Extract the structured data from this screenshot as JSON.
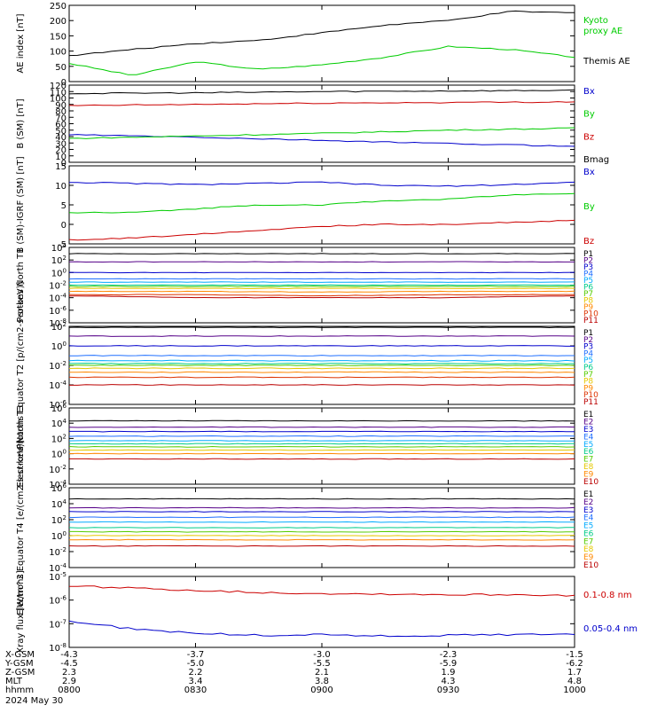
{
  "footer": {
    "rows": [
      {
        "label": "X-GSM",
        "values": [
          "-4.3",
          "-3.7",
          "-3.0",
          "-2.3",
          "-1.5"
        ]
      },
      {
        "label": "Y-GSM",
        "values": [
          "-4.5",
          "-5.0",
          "-5.5",
          "-5.9",
          "-6.2"
        ]
      },
      {
        "label": "Z-GSM",
        "values": [
          "2.3",
          "2.2",
          "2.1",
          "1.9",
          "1.7"
        ]
      },
      {
        "label": "MLT",
        "values": [
          "2.9",
          "3.4",
          "3.8",
          "4.3",
          "4.8"
        ]
      },
      {
        "label": "hhmm",
        "values": [
          "0800",
          "0830",
          "0900",
          "0930",
          "1000"
        ]
      }
    ],
    "date": "2024 May 30"
  },
  "chart_data": [
    {
      "type": "line",
      "ylabel": "AE index [nT]",
      "ylim": [
        0,
        250
      ],
      "yscale": "linear",
      "yticks": [
        "0",
        "50",
        "100",
        "150",
        "200",
        "250"
      ],
      "x": [
        "0800",
        "0815",
        "0830",
        "0845",
        "0900",
        "0915",
        "0930",
        "0945",
        "1000"
      ],
      "series": [
        {
          "name": "Kyoto proxy AE",
          "color": "#00cc00",
          "values": [
            60,
            20,
            65,
            40,
            55,
            80,
            115,
            105,
            80
          ]
        },
        {
          "name": "Themis AE",
          "color": "#000000",
          "values": [
            85,
            105,
            125,
            135,
            160,
            185,
            200,
            230,
            225
          ]
        }
      ]
    },
    {
      "type": "line",
      "ylabel": "B (SM) [nT]",
      "ylim": [
        0,
        120
      ],
      "yscale": "linear",
      "yticks": [
        "0",
        "10",
        "20",
        "30",
        "40",
        "50",
        "60",
        "70",
        "80",
        "90",
        "100",
        "110",
        "120"
      ],
      "x": [
        "0800",
        "0830",
        "0900",
        "0930",
        "1000"
      ],
      "series": [
        {
          "name": "Bx",
          "color": "#0000cc",
          "values": [
            43,
            39,
            34,
            29,
            25
          ]
        },
        {
          "name": "By",
          "color": "#00cc00",
          "values": [
            37,
            41,
            45,
            50,
            53
          ]
        },
        {
          "name": "Bz",
          "color": "#cc0000",
          "values": [
            88,
            90,
            92,
            93,
            94
          ]
        },
        {
          "name": "Bmag",
          "color": "#000000",
          "values": [
            107,
            108,
            110,
            111,
            112
          ]
        }
      ]
    },
    {
      "type": "line",
      "ylabel": "B (SM)-IGRF (SM) [nT]",
      "ylim": [
        -5,
        15
      ],
      "yscale": "linear",
      "yticks": [
        "-5",
        "0",
        "5",
        "10",
        "15"
      ],
      "x": [
        "0800",
        "0815",
        "0830",
        "0845",
        "0900",
        "0915",
        "0930",
        "0945",
        "1000"
      ],
      "series": [
        {
          "name": "Bx",
          "color": "#0000cc",
          "values": [
            10.8,
            10.5,
            10.2,
            10.5,
            10.8,
            10.0,
            9.8,
            10.2,
            10.8
          ]
        },
        {
          "name": "By",
          "color": "#00cc00",
          "values": [
            3,
            3,
            4,
            5,
            5,
            6,
            6.5,
            7.5,
            8
          ]
        },
        {
          "name": "Bz",
          "color": "#cc0000",
          "values": [
            -4,
            -3.5,
            -2.5,
            -1.5,
            -0.5,
            0,
            0,
            0.5,
            1
          ]
        }
      ]
    },
    {
      "type": "line",
      "ylabel": "Protons North T1",
      "yscale": "log",
      "ylim_exp": [
        -8,
        4
      ],
      "yticks": [
        "10^-8",
        "10^-6",
        "10^-4",
        "10^-2",
        "10^0",
        "10^2",
        "10^4"
      ],
      "x": [
        "0800",
        "0830",
        "0900",
        "0930",
        "1000"
      ],
      "series": [
        {
          "name": "P1",
          "color": "#000000",
          "values": [
            1000,
            1000,
            1000,
            1000,
            1000
          ]
        },
        {
          "name": "P2",
          "color": "#550088",
          "values": [
            50,
            50,
            50,
            50,
            50
          ]
        },
        {
          "name": "P3",
          "color": "#0000cc",
          "values": [
            1,
            1,
            1,
            1,
            1
          ]
        },
        {
          "name": "P4",
          "color": "#1f6fff",
          "values": [
            0.1,
            0.1,
            0.1,
            0.1,
            0.1
          ]
        },
        {
          "name": "P5",
          "color": "#00aaff",
          "values": [
            0.03,
            0.03,
            0.03,
            0.03,
            0.03
          ]
        },
        {
          "name": "P6",
          "color": "#00cc88",
          "values": [
            0.01,
            0.01,
            0.01,
            0.01,
            0.01
          ]
        },
        {
          "name": "P7",
          "color": "#55cc00",
          "values": [
            0.006,
            0.006,
            0.006,
            0.006,
            0.006
          ]
        },
        {
          "name": "P8",
          "color": "#e5c800",
          "values": [
            0.003,
            0.003,
            0.003,
            0.003,
            0.003
          ]
        },
        {
          "name": "P9",
          "color": "#ff8800",
          "values": [
            0.001,
            0.001,
            0.0008,
            0.001,
            0.001
          ]
        },
        {
          "name": "P10",
          "color": "#dd3300",
          "values": [
            0.0003,
            0.0003,
            0.0002,
            0.0003,
            0.0003
          ]
        },
        {
          "name": "P11",
          "color": "#bb0000",
          "values": [
            0.0002,
            0.0001,
            0.0001,
            0.0001,
            0.0002
          ]
        }
      ]
    },
    {
      "type": "line",
      "ylabel": "Protons Equator T2 [p/(cm2-s-sr-keV)]",
      "yscale": "log",
      "ylim_exp": [
        -6,
        2
      ],
      "yticks": [
        "10^-6",
        "10^-4",
        "10^-2",
        "10^0",
        "10^2"
      ],
      "x": [
        "0800",
        "0830",
        "0900",
        "0930",
        "1000"
      ],
      "series": [
        {
          "name": "P1",
          "color": "#000000",
          "values": [
            80,
            80,
            80,
            80,
            80
          ]
        },
        {
          "name": "P2",
          "color": "#550088",
          "values": [
            10,
            10,
            10,
            10,
            10
          ]
        },
        {
          "name": "P3",
          "color": "#0000cc",
          "values": [
            1,
            1,
            1,
            1,
            1
          ]
        },
        {
          "name": "P4",
          "color": "#1f6fff",
          "values": [
            0.1,
            0.1,
            0.1,
            0.1,
            0.1
          ]
        },
        {
          "name": "P5",
          "color": "#00aaff",
          "values": [
            0.03,
            0.03,
            0.03,
            0.03,
            0.03
          ]
        },
        {
          "name": "P6",
          "color": "#00cc88",
          "values": [
            0.015,
            0.015,
            0.015,
            0.015,
            0.015
          ]
        },
        {
          "name": "P7",
          "color": "#55cc00",
          "values": [
            0.01,
            0.01,
            0.01,
            0.01,
            0.01
          ]
        },
        {
          "name": "P8",
          "color": "#e5c800",
          "values": [
            0.005,
            0.005,
            0.005,
            0.005,
            0.005
          ]
        },
        {
          "name": "P9",
          "color": "#ff8800",
          "values": [
            0.002,
            0.002,
            0.002,
            0.002,
            0.002
          ]
        },
        {
          "name": "P10",
          "color": "#dd3300",
          "values": [
            0.0006,
            0.0006,
            0.0006,
            0.0006,
            0.0006
          ]
        },
        {
          "name": "P11",
          "color": "#bb0000",
          "values": [
            0.0001,
            0.0001,
            0.0001,
            0.0001,
            0.0001
          ]
        }
      ]
    },
    {
      "type": "line",
      "ylabel": "Electrons North T3",
      "yscale": "log",
      "ylim_exp": [
        -4,
        6
      ],
      "yticks": [
        "10^-4",
        "10^-2",
        "10^0",
        "10^2",
        "10^4",
        "10^6"
      ],
      "x": [
        "0800",
        "0830",
        "0900",
        "0930",
        "1000"
      ],
      "series": [
        {
          "name": "E1",
          "color": "#000000",
          "values": [
            20000,
            20000,
            20000,
            20000,
            20000
          ]
        },
        {
          "name": "E2",
          "color": "#550088",
          "values": [
            3000,
            3000,
            3000,
            3000,
            3000
          ]
        },
        {
          "name": "E3",
          "color": "#0000cc",
          "values": [
            800,
            800,
            800,
            800,
            800
          ]
        },
        {
          "name": "E4",
          "color": "#1f6fff",
          "values": [
            200,
            200,
            200,
            200,
            200
          ]
        },
        {
          "name": "E5",
          "color": "#00aaff",
          "values": [
            50,
            50,
            50,
            50,
            50
          ]
        },
        {
          "name": "E6",
          "color": "#00cc88",
          "values": [
            20,
            20,
            20,
            20,
            20
          ]
        },
        {
          "name": "E7",
          "color": "#55cc00",
          "values": [
            8,
            8,
            8,
            8,
            8
          ]
        },
        {
          "name": "E8",
          "color": "#e5c800",
          "values": [
            3,
            3,
            3,
            3,
            3
          ]
        },
        {
          "name": "E9",
          "color": "#ff8800",
          "values": [
            1,
            1,
            1,
            1,
            1
          ]
        },
        {
          "name": "E10",
          "color": "#bb0000",
          "values": [
            0.2,
            0.2,
            0.2,
            0.2,
            0.2
          ]
        }
      ]
    },
    {
      "type": "line",
      "ylabel": "Electrons Equator T4 [e/(cm2-s-sr-keV)]",
      "yscale": "log",
      "ylim_exp": [
        -4,
        6
      ],
      "yticks": [
        "10^-4",
        "10^-2",
        "10^0",
        "10^2",
        "10^4",
        "10^6"
      ],
      "x": [
        "0800",
        "0830",
        "0900",
        "0930",
        "1000"
      ],
      "series": [
        {
          "name": "E1",
          "color": "#000000",
          "values": [
            40000,
            40000,
            40000,
            40000,
            40000
          ]
        },
        {
          "name": "E2",
          "color": "#550088",
          "values": [
            3000,
            3000,
            3000,
            3000,
            3000
          ]
        },
        {
          "name": "E3",
          "color": "#0000cc",
          "values": [
            1000,
            1000,
            1000,
            1000,
            1000
          ]
        },
        {
          "name": "E4",
          "color": "#1f6fff",
          "values": [
            200,
            200,
            200,
            200,
            200
          ]
        },
        {
          "name": "E5",
          "color": "#00aaff",
          "values": [
            50,
            50,
            50,
            50,
            50
          ]
        },
        {
          "name": "E6",
          "color": "#00cc88",
          "values": [
            10,
            10,
            10,
            10,
            10
          ]
        },
        {
          "name": "E7",
          "color": "#55cc00",
          "values": [
            3,
            3,
            3,
            3,
            3
          ]
        },
        {
          "name": "E8",
          "color": "#e5c800",
          "values": [
            1,
            1,
            1,
            1,
            1
          ]
        },
        {
          "name": "E9",
          "color": "#ff8800",
          "values": [
            0.3,
            0.3,
            0.3,
            0.3,
            0.3
          ]
        },
        {
          "name": "E10",
          "color": "#bb0000",
          "values": [
            0.05,
            0.05,
            0.05,
            0.05,
            0.05
          ]
        }
      ]
    },
    {
      "type": "line",
      "ylabel": "Xray flux [W/m^2]",
      "yscale": "log",
      "ylim_exp": [
        -8,
        -5
      ],
      "yticks": [
        "10^-8",
        "10^-7",
        "10^-6",
        "10^-5"
      ],
      "x": [
        "0800",
        "0815",
        "0830",
        "0845",
        "0900",
        "0915",
        "0930",
        "0945",
        "1000"
      ],
      "series": [
        {
          "name": "0.1-0.8 nm",
          "color": "#cc0000",
          "values": [
            4e-06,
            3.2e-06,
            2.6e-06,
            2.1e-06,
            1.9e-06,
            1.8e-06,
            1.7e-06,
            1.7e-06,
            1.6e-06
          ]
        },
        {
          "name": "0.05-0.4 nm",
          "color": "#0000cc",
          "values": [
            1.3e-07,
            6e-08,
            4e-08,
            3.2e-08,
            3.5e-08,
            3e-08,
            3.2e-08,
            3.5e-08,
            3.8e-08
          ]
        }
      ]
    }
  ]
}
